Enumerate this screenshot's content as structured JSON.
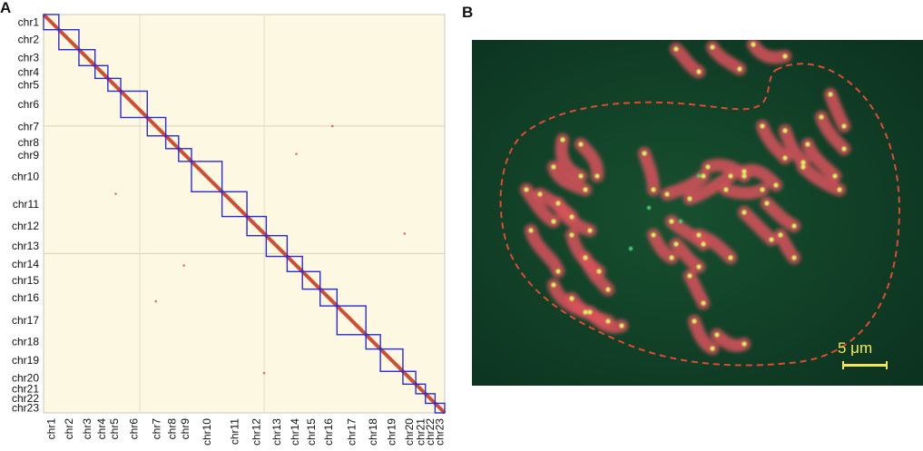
{
  "panels": {
    "a": {
      "letter": "A"
    },
    "b": {
      "letter": "B"
    }
  },
  "chart_data": {
    "type": "heatmap",
    "title": "",
    "chromosomes": [
      "chr1",
      "chr2",
      "chr3",
      "chr4",
      "chr5",
      "chr6",
      "chr7",
      "chr8",
      "chr9",
      "chr10",
      "chr11",
      "chr12",
      "chr13",
      "chr14",
      "chr15",
      "chr16",
      "chr17",
      "chr18",
      "chr19",
      "chr20",
      "chr21",
      "chr22",
      "chr23"
    ],
    "relative_sizes": [
      1.9,
      2.5,
      2.0,
      1.6,
      1.6,
      3.3,
      2.3,
      1.6,
      1.6,
      3.8,
      3.1,
      2.4,
      2.6,
      1.9,
      2.2,
      2.1,
      3.6,
      1.8,
      2.8,
      1.6,
      1.2,
      1.2,
      1.2
    ],
    "domain_box_color": "#2b2bd6",
    "diagonal_colors": [
      "#e03020",
      "#3a9a30"
    ],
    "background_color": "#fdf8e2"
  },
  "figure_b": {
    "scale_label": "5 μm",
    "colors": {
      "background": "#0f3a23",
      "chromosome": "#d9525c",
      "signal": "#d8f060",
      "outline": "#e04a32"
    }
  }
}
